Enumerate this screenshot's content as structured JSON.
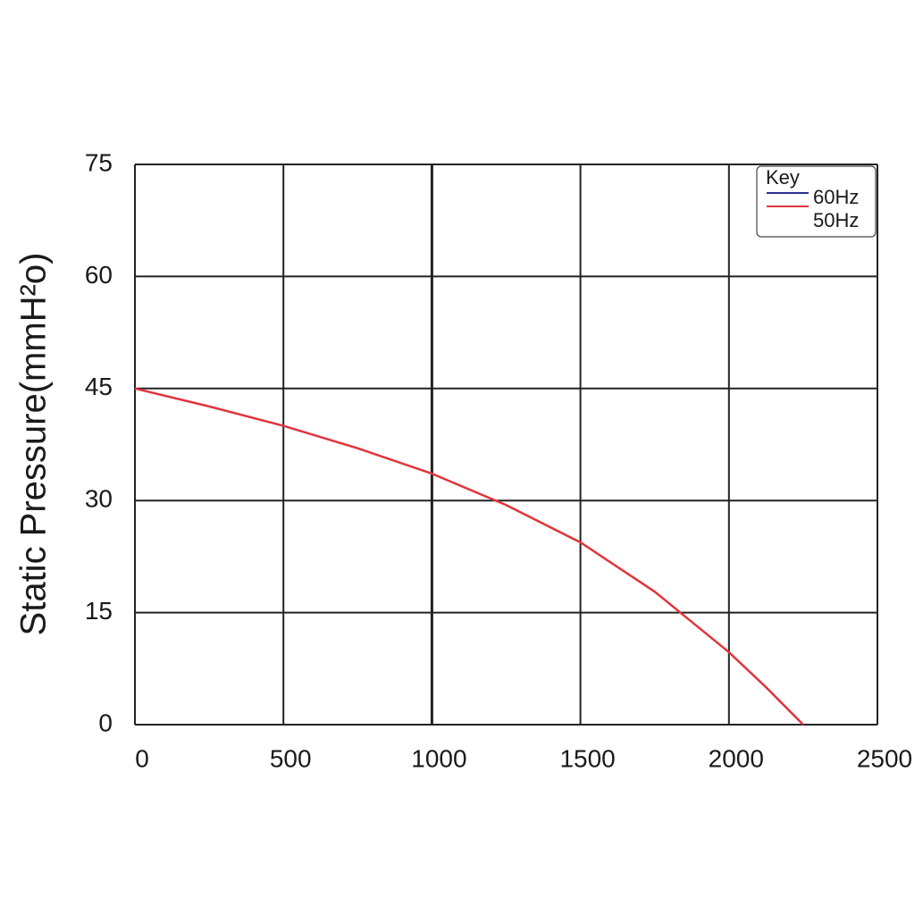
{
  "chart_data": {
    "type": "line",
    "y_label": "Static Pressure(mmH²o)",
    "legend_title": "Key",
    "legend": "top-right",
    "grid": true,
    "x": [
      0,
      250,
      500,
      750,
      1000,
      1250,
      1500,
      1750,
      2000,
      2125,
      2250
    ],
    "series": [
      {
        "name": "60Hz",
        "color": "#2a2f8f",
        "values": [
          null,
          null,
          null,
          null,
          null,
          null,
          null,
          null,
          null,
          null,
          null
        ]
      },
      {
        "name": "50Hz",
        "color": "#e0353c",
        "values": [
          45,
          42.6,
          40,
          37,
          33.6,
          29.4,
          24.4,
          17.8,
          9.7,
          5,
          0
        ]
      }
    ],
    "xlim": [
      0,
      2500
    ],
    "xticks": [
      0,
      500,
      1000,
      1500,
      2000,
      2500
    ],
    "ylim": [
      0,
      75
    ],
    "yticks": [
      0,
      15,
      30,
      45,
      60,
      75
    ]
  }
}
